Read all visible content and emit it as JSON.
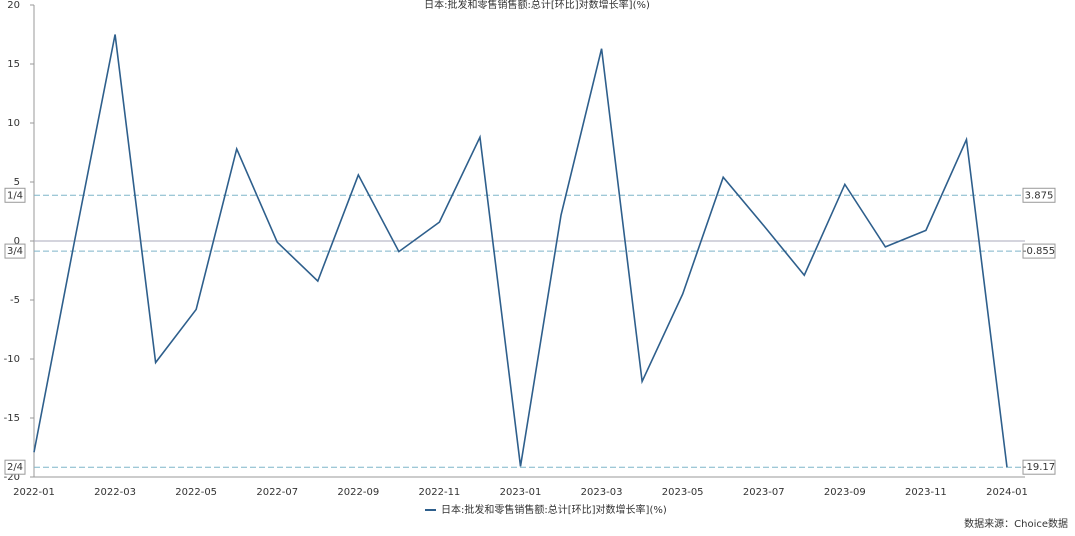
{
  "chart_data": {
    "type": "line",
    "title": "日本:批发和零售销售额:总计[环比]对数增长率](%)",
    "source": "数据来源：Choice数据",
    "categories": [
      "2022-01",
      null,
      "2022-03",
      null,
      "2022-05",
      null,
      "2022-07",
      null,
      "2022-09",
      null,
      "2022-11",
      null,
      "2023-01",
      null,
      "2023-03",
      null,
      "2023-05",
      null,
      "2023-07",
      null,
      "2023-09",
      null,
      "2023-11",
      null,
      "2024-01"
    ],
    "series": [
      {
        "name": "日本:批发和零售销售额:总计[环比]对数增长率](%)",
        "color": "#2e5f8c",
        "values": [
          -17.9,
          0,
          17.5,
          -10.3,
          -5.8,
          7.8,
          -0.1,
          -3.4,
          5.6,
          -0.9,
          1.6,
          8.8,
          -19.1,
          2.2,
          16.3,
          -11.9,
          -4.5,
          5.4,
          1.3,
          -2.9,
          4.8,
          -0.5,
          0.9,
          8.6,
          -19.17
        ]
      }
    ],
    "reference_lines": [
      {
        "name": "1/4",
        "value": 3.875
      },
      {
        "name": "3/4",
        "value": -0.855
      },
      {
        "name": "2/4",
        "value": -19.17
      }
    ],
    "ylim": [
      -20,
      20
    ],
    "yticks": [
      20,
      15,
      10,
      5,
      0,
      -5,
      -10,
      -15,
      -20
    ]
  }
}
